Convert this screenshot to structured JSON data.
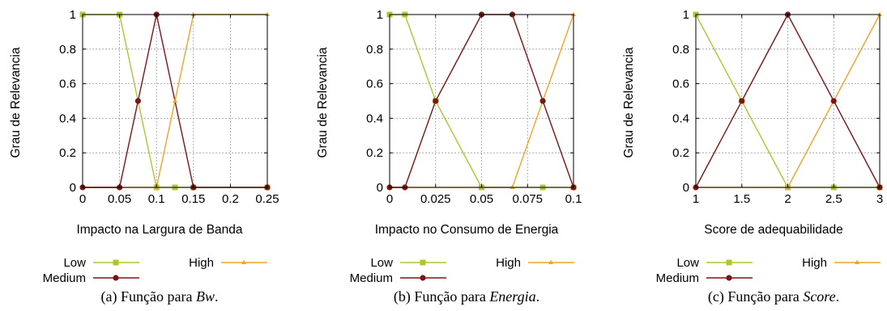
{
  "styles": {
    "low_color": "#b3c334",
    "medium_color": "#7a1616",
    "high_color": "#f0a42a",
    "grid_color": "#9a9a9a"
  },
  "chart_data": [
    {
      "type": "line",
      "xlabel": "Impacto na Largura de Banda",
      "ylabel": "Grau de Relevancia",
      "xlim": [
        0,
        0.25
      ],
      "ylim": [
        0,
        1
      ],
      "xticks": [
        "0",
        "0.05",
        "0.1",
        "0.15",
        "0.2",
        "0.25"
      ],
      "xtick_values": [
        0,
        0.05,
        0.1,
        0.15,
        0.2,
        0.25
      ],
      "yticks": [
        "0",
        "0.2",
        "0.4",
        "0.6",
        "0.8",
        "1"
      ],
      "ytick_values": [
        0,
        0.2,
        0.4,
        0.6,
        0.8,
        1
      ],
      "grid": true,
      "caption": {
        "prefix": "(a)  Função para ",
        "emph": "Bw",
        "suffix": "."
      },
      "legend": {
        "low": "Low",
        "medium": "Medium",
        "high": "High"
      },
      "series": [
        {
          "name": "Low",
          "marker": "square",
          "x": [
            0,
            0.05,
            0.1,
            0.125,
            0.15,
            0.25
          ],
          "y": [
            1,
            1,
            0,
            0,
            0,
            0
          ]
        },
        {
          "name": "Medium",
          "marker": "circle",
          "x": [
            0,
            0.05,
            0.075,
            0.1,
            0.15,
            0.25
          ],
          "y": [
            0,
            0,
            0.5,
            1,
            0,
            0
          ]
        },
        {
          "name": "High",
          "marker": "triangle",
          "x": [
            0,
            0.1,
            0.125,
            0.15,
            0.25
          ],
          "y": [
            0,
            0,
            0.5,
            1,
            1
          ]
        }
      ]
    },
    {
      "type": "line",
      "xlabel": "Impacto no Consumo de Energia",
      "ylabel": "Grau de Relevancia",
      "xlim": [
        0,
        0.1
      ],
      "ylim": [
        0,
        1
      ],
      "xticks": [
        "0",
        "0.025",
        "0.05",
        "0.075",
        "0.1"
      ],
      "xtick_values": [
        0,
        0.025,
        0.05,
        0.075,
        0.1
      ],
      "yticks": [
        "0",
        "0.2",
        "0.4",
        "0.6",
        "0.8",
        "1"
      ],
      "ytick_values": [
        0,
        0.2,
        0.4,
        0.6,
        0.8,
        1
      ],
      "grid": true,
      "caption": {
        "prefix": "(b)  Função para ",
        "emph": "Energia",
        "suffix": "."
      },
      "legend": {
        "low": "Low",
        "medium": "Medium",
        "high": "High"
      },
      "series": [
        {
          "name": "Low",
          "marker": "square",
          "x": [
            0,
            0.0083,
            0.025,
            0.05,
            0.0833,
            0.1
          ],
          "y": [
            1,
            1,
            0.5,
            0,
            0,
            0
          ]
        },
        {
          "name": "Medium",
          "marker": "circle",
          "x": [
            0,
            0.0083,
            0.025,
            0.05,
            0.0667,
            0.0833,
            0.1
          ],
          "y": [
            0,
            0,
            0.5,
            1,
            1,
            0.5,
            0
          ]
        },
        {
          "name": "High",
          "marker": "triangle",
          "x": [
            0,
            0.0667,
            0.0833,
            0.1
          ],
          "y": [
            0,
            0,
            0.5,
            1
          ]
        }
      ]
    },
    {
      "type": "line",
      "xlabel": "Score de adequabilidade",
      "ylabel": "Grau de Relevancia",
      "xlim": [
        1,
        3
      ],
      "ylim": [
        0,
        1
      ],
      "xticks": [
        "1",
        "1.5",
        "2",
        "2.5",
        "3"
      ],
      "xtick_values": [
        1,
        1.5,
        2,
        2.5,
        3
      ],
      "yticks": [
        "0",
        "0.2",
        "0.4",
        "0.6",
        "0.8",
        "1"
      ],
      "ytick_values": [
        0,
        0.2,
        0.4,
        0.6,
        0.8,
        1
      ],
      "grid": true,
      "caption": {
        "prefix": "(c)  Função para ",
        "emph": "Score",
        "suffix": "."
      },
      "legend": {
        "low": "Low",
        "medium": "Medium",
        "high": "High"
      },
      "series": [
        {
          "name": "Low",
          "marker": "square",
          "x": [
            1,
            1.5,
            2,
            2.5,
            3
          ],
          "y": [
            1,
            0.5,
            0,
            0,
            0
          ]
        },
        {
          "name": "Medium",
          "marker": "circle",
          "x": [
            1,
            1.5,
            2,
            2.5,
            3
          ],
          "y": [
            0,
            0.5,
            1,
            0.5,
            0
          ]
        },
        {
          "name": "High",
          "marker": "triangle",
          "x": [
            1,
            2,
            2.5,
            3
          ],
          "y": [
            0,
            0,
            0.5,
            1
          ]
        }
      ]
    }
  ]
}
